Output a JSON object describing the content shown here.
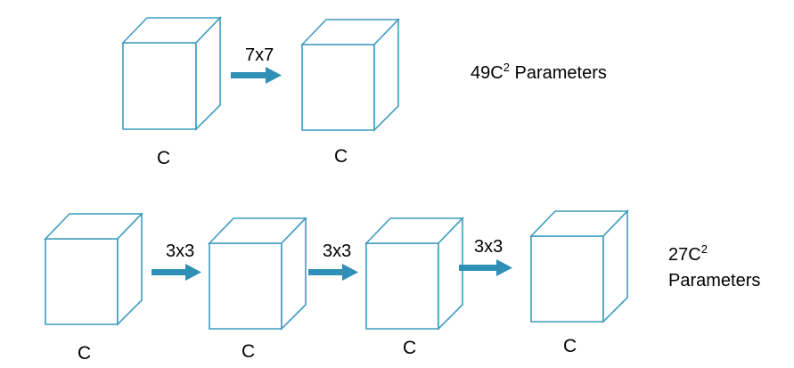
{
  "row1": {
    "cubes": [
      {
        "label": "C"
      },
      {
        "label": "C"
      }
    ],
    "convs": [
      {
        "label": "7x7"
      }
    ],
    "params": {
      "prefix": "49C",
      "superscript": "2",
      "suffix": " Parameters"
    }
  },
  "row2": {
    "cubes": [
      {
        "label": "C"
      },
      {
        "label": "C"
      },
      {
        "label": "C"
      },
      {
        "label": "C"
      }
    ],
    "convs": [
      {
        "label": "3x3"
      },
      {
        "label": "3x3"
      },
      {
        "label": "3x3"
      }
    ],
    "params": {
      "prefix": "27C",
      "superscript": "2",
      "line2": "Parameters"
    }
  },
  "colors": {
    "cube_stroke": "#3e9cbf",
    "arrow_fill": "#2f8fb6"
  }
}
